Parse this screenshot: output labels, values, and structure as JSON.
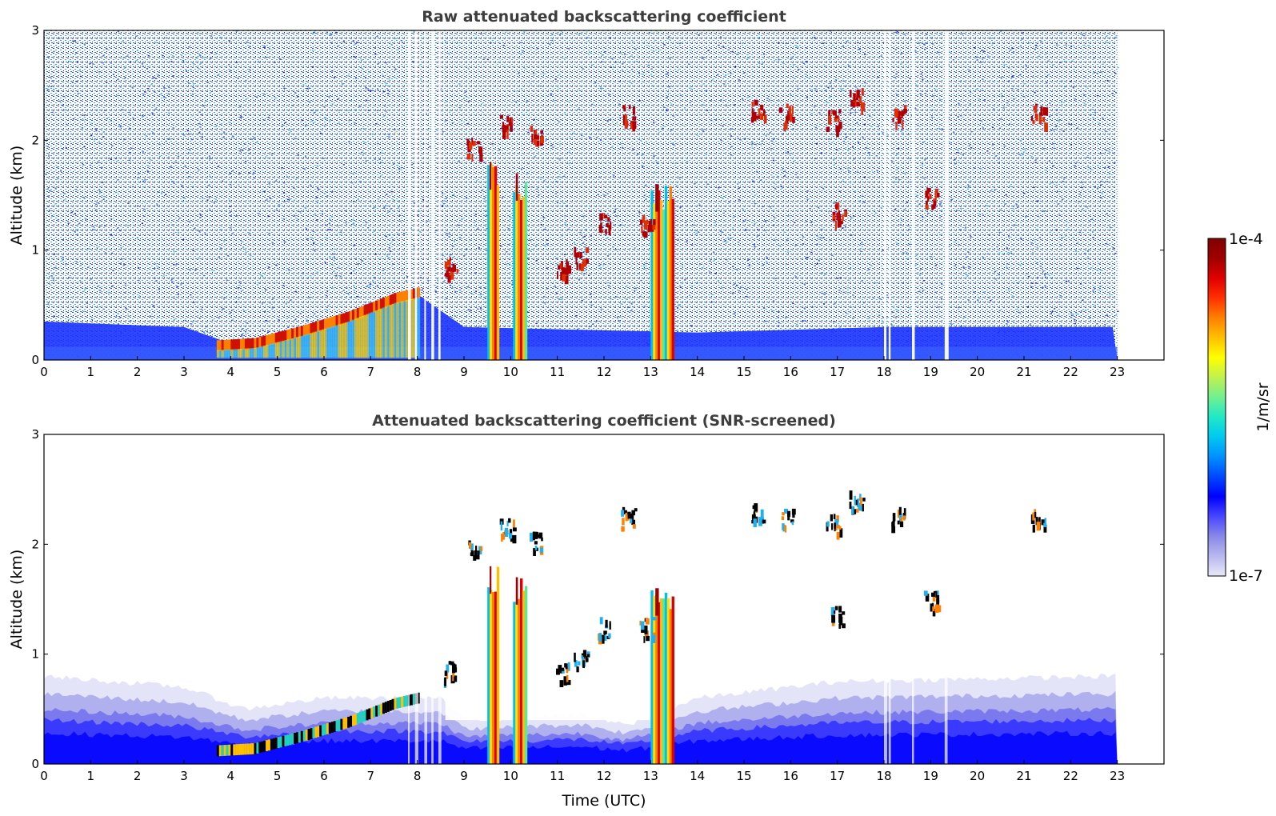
{
  "chart_data": [
    {
      "type": "heatmap",
      "title": "Raw attenuated backscattering coefficient",
      "xlabel": "",
      "ylabel": "Altitude (km)",
      "xlim": [
        0,
        24
      ],
      "ylim": [
        0,
        3
      ],
      "x_ticks": [
        "0",
        "1",
        "2",
        "3",
        "4",
        "5",
        "6",
        "7",
        "8",
        "9",
        "10",
        "11",
        "12",
        "13",
        "14",
        "15",
        "16",
        "17",
        "18",
        "19",
        "20",
        "21",
        "22",
        "23"
      ],
      "y_ticks": [
        "0",
        "1",
        "2",
        "3"
      ],
      "data_extent_hours": [
        0,
        23
      ],
      "boundary_layer": [
        {
          "t": 0,
          "h": 0.35
        },
        {
          "t": 3,
          "h": 0.3
        },
        {
          "t": 4,
          "h": 0.15
        },
        {
          "t": 5,
          "h": 0.22
        },
        {
          "t": 6,
          "h": 0.32
        },
        {
          "t": 7,
          "h": 0.45
        },
        {
          "t": 8,
          "h": 0.6
        },
        {
          "t": 9,
          "h": 0.3
        },
        {
          "t": 14,
          "h": 0.25
        },
        {
          "t": 18,
          "h": 0.3
        },
        {
          "t": 23,
          "h": 0.3
        }
      ],
      "aerosol_layer_top": [
        {
          "t": 3.7,
          "h": 0.12
        },
        {
          "t": 4.5,
          "h": 0.14
        },
        {
          "t": 5.5,
          "h": 0.25
        },
        {
          "t": 6.5,
          "h": 0.38
        },
        {
          "t": 7.5,
          "h": 0.55
        },
        {
          "t": 8.0,
          "h": 0.6
        }
      ],
      "precip_columns": [
        {
          "t0": 9.5,
          "t1": 9.75,
          "top": 1.8
        },
        {
          "t0": 10.05,
          "t1": 10.35,
          "top": 1.7
        },
        {
          "t0": 13.0,
          "t1": 13.5,
          "top": 1.6
        }
      ],
      "cloud_patches": [
        {
          "t": 8.7,
          "h": 0.8
        },
        {
          "t": 9.2,
          "h": 1.9
        },
        {
          "t": 9.9,
          "h": 2.1
        },
        {
          "t": 10.5,
          "h": 2.0
        },
        {
          "t": 11.1,
          "h": 0.8
        },
        {
          "t": 11.5,
          "h": 0.9
        },
        {
          "t": 12.0,
          "h": 1.2
        },
        {
          "t": 12.5,
          "h": 2.2
        },
        {
          "t": 12.9,
          "h": 1.2
        },
        {
          "t": 15.3,
          "h": 2.25
        },
        {
          "t": 15.9,
          "h": 2.2
        },
        {
          "t": 16.9,
          "h": 2.15
        },
        {
          "t": 17.0,
          "h": 1.3
        },
        {
          "t": 17.4,
          "h": 2.35
        },
        {
          "t": 18.3,
          "h": 2.2
        },
        {
          "t": 19.0,
          "h": 1.45
        },
        {
          "t": 21.3,
          "h": 2.2
        }
      ]
    },
    {
      "type": "heatmap",
      "title": "Attenuated backscattering coefficient (SNR-screened)",
      "xlabel": "Time (UTC)",
      "ylabel": "Altitude (km)",
      "xlim": [
        0,
        24
      ],
      "ylim": [
        0,
        3
      ],
      "x_ticks": [
        "0",
        "1",
        "2",
        "3",
        "4",
        "5",
        "6",
        "7",
        "8",
        "9",
        "10",
        "11",
        "12",
        "13",
        "14",
        "15",
        "16",
        "17",
        "18",
        "19",
        "20",
        "21",
        "22",
        "23"
      ],
      "y_ticks": [
        "0",
        "1",
        "2",
        "3"
      ],
      "data_extent_hours": [
        0,
        23
      ],
      "screened_layer_top": [
        {
          "t": 0,
          "h": 0.8
        },
        {
          "t": 3,
          "h": 0.7
        },
        {
          "t": 4.3,
          "h": 0.5
        },
        {
          "t": 6,
          "h": 0.6
        },
        {
          "t": 8.5,
          "h": 0.6
        },
        {
          "t": 9,
          "h": 0.4
        },
        {
          "t": 11.5,
          "h": 0.45
        },
        {
          "t": 12.5,
          "h": 0.35
        },
        {
          "t": 14,
          "h": 0.6
        },
        {
          "t": 17,
          "h": 0.75
        },
        {
          "t": 23,
          "h": 0.8
        }
      ]
    }
  ],
  "colorbar": {
    "label": "1/m/sr",
    "max_label": "1e-4",
    "min_label": "1e-7",
    "colors": [
      "#e8e8f8",
      "#b8b8f0",
      "#8888e8",
      "#4848ff",
      "#0000ff",
      "#0048ff",
      "#0090ff",
      "#00c8f0",
      "#20e8c8",
      "#70f090",
      "#c0f050",
      "#ffff00",
      "#ffc000",
      "#ff8000",
      "#ff3000",
      "#e00000",
      "#a00000",
      "#800000"
    ]
  }
}
